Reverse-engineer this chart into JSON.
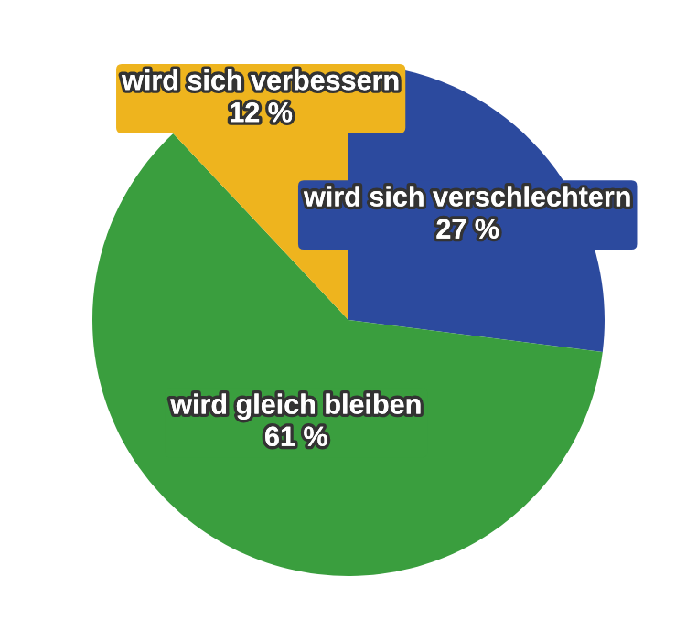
{
  "chart_data": {
    "type": "pie",
    "categories": [
      "wird sich verschlechtern",
      "wird gleich bleiben",
      "wird sich verbessern"
    ],
    "values": [
      27,
      61,
      12
    ],
    "colors": [
      "#2c4a9e",
      "#3a9e3e",
      "#eeb41e"
    ],
    "value_labels": [
      "27 %",
      "61 %",
      "12 %"
    ]
  }
}
